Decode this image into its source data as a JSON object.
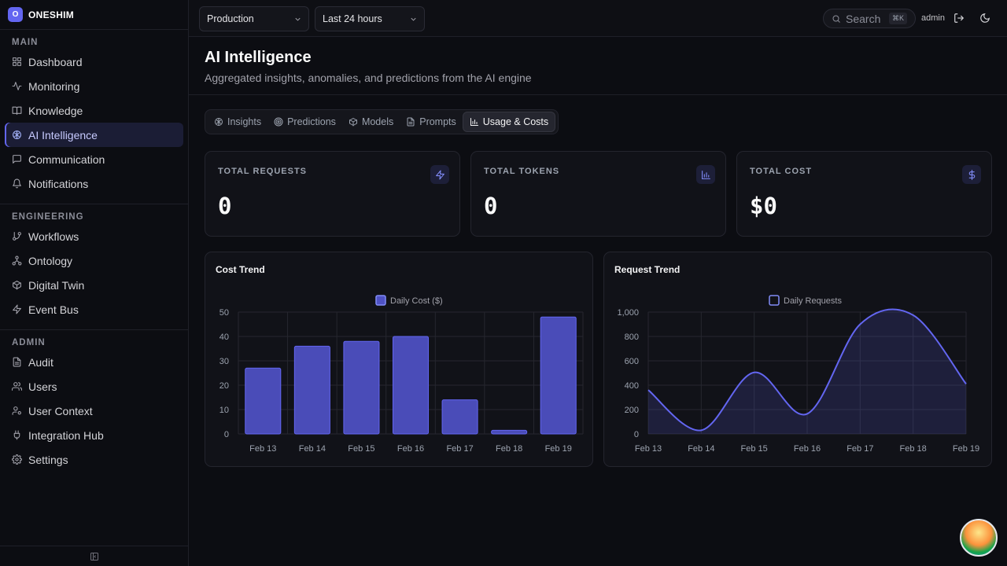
{
  "brand": {
    "logo_letter": "O",
    "name": "ONESHIM"
  },
  "sidebar": {
    "sections": [
      {
        "title": "MAIN",
        "items": [
          {
            "label": "Dashboard",
            "icon": "dashboard-icon"
          },
          {
            "label": "Monitoring",
            "icon": "activity-icon"
          },
          {
            "label": "Knowledge",
            "icon": "book-icon"
          },
          {
            "label": "AI Intelligence",
            "icon": "brain-icon",
            "active": true
          },
          {
            "label": "Communication",
            "icon": "message-icon"
          },
          {
            "label": "Notifications",
            "icon": "bell-icon"
          }
        ]
      },
      {
        "title": "ENGINEERING",
        "items": [
          {
            "label": "Workflows",
            "icon": "git-branch-icon"
          },
          {
            "label": "Ontology",
            "icon": "network-icon"
          },
          {
            "label": "Digital Twin",
            "icon": "cube-icon"
          },
          {
            "label": "Event Bus",
            "icon": "zap-icon"
          }
        ]
      },
      {
        "title": "ADMIN",
        "items": [
          {
            "label": "Audit",
            "icon": "file-text-icon"
          },
          {
            "label": "Users",
            "icon": "users-icon"
          },
          {
            "label": "User Context",
            "icon": "user-cog-icon"
          },
          {
            "label": "Integration Hub",
            "icon": "plug-icon"
          },
          {
            "label": "Settings",
            "icon": "gear-icon"
          }
        ]
      }
    ]
  },
  "topbar": {
    "environment": "Production",
    "time_range": "Last 24 hours",
    "search_placeholder": "Search",
    "search_shortcut": "⌘K",
    "user": "admin"
  },
  "header": {
    "title": "AI Intelligence",
    "subtitle": "Aggregated insights, anomalies, and predictions from the AI engine"
  },
  "tabs": [
    {
      "label": "Insights",
      "icon": "brain-icon"
    },
    {
      "label": "Predictions",
      "icon": "target-icon"
    },
    {
      "label": "Models",
      "icon": "cube-icon"
    },
    {
      "label": "Prompts",
      "icon": "file-text-icon"
    },
    {
      "label": "Usage & Costs",
      "icon": "bar-chart-icon",
      "active": true
    }
  ],
  "stats": [
    {
      "label": "TOTAL REQUESTS",
      "value": "0",
      "icon": "zap-icon"
    },
    {
      "label": "TOTAL TOKENS",
      "value": "0",
      "icon": "bar-chart-icon"
    },
    {
      "label": "TOTAL COST",
      "value": "$0",
      "icon": "dollar-icon"
    }
  ],
  "colors": {
    "accent": "#6366f1",
    "accent_light": "#818cf8"
  },
  "chart_data": [
    {
      "type": "bar",
      "title": "Cost Trend",
      "categories": [
        "Feb 13",
        "Feb 14",
        "Feb 15",
        "Feb 16",
        "Feb 17",
        "Feb 18",
        "Feb 19"
      ],
      "series": [
        {
          "name": "Daily Cost ($)",
          "values": [
            27,
            36,
            38,
            40,
            14,
            1.5,
            48
          ]
        }
      ],
      "ylim": [
        0,
        50
      ],
      "yticks": [
        "0",
        "10",
        "20",
        "30",
        "40",
        "50"
      ],
      "ytick_values": [
        0,
        10,
        20,
        30,
        40,
        50
      ],
      "legend": "top-center",
      "grid": true
    },
    {
      "type": "area",
      "title": "Request Trend",
      "categories": [
        "Feb 13",
        "Feb 14",
        "Feb 15",
        "Feb 16",
        "Feb 17",
        "Feb 18",
        "Feb 19"
      ],
      "series": [
        {
          "name": "Daily Requests",
          "values": [
            360,
            30,
            505,
            165,
            900,
            975,
            410
          ]
        }
      ],
      "ylim": [
        0,
        1000
      ],
      "yticks": [
        "0",
        "200",
        "400",
        "600",
        "800",
        "1,000"
      ],
      "ytick_values": [
        0,
        200,
        400,
        600,
        800,
        1000
      ],
      "legend": "top-center",
      "grid": true
    }
  ]
}
